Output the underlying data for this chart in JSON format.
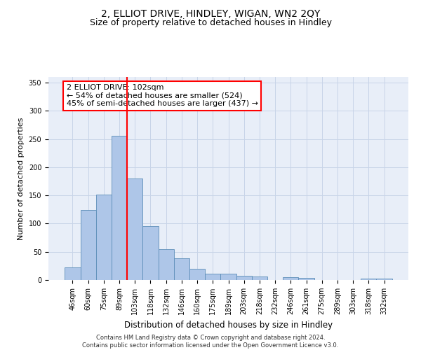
{
  "title": "2, ELLIOT DRIVE, HINDLEY, WIGAN, WN2 2QY",
  "subtitle": "Size of property relative to detached houses in Hindley",
  "xlabel": "Distribution of detached houses by size in Hindley",
  "ylabel": "Number of detached properties",
  "categories": [
    "46sqm",
    "60sqm",
    "75sqm",
    "89sqm",
    "103sqm",
    "118sqm",
    "132sqm",
    "146sqm",
    "160sqm",
    "175sqm",
    "189sqm",
    "203sqm",
    "218sqm",
    "232sqm",
    "246sqm",
    "261sqm",
    "275sqm",
    "289sqm",
    "303sqm",
    "318sqm",
    "332sqm"
  ],
  "values": [
    22,
    124,
    152,
    256,
    180,
    95,
    55,
    38,
    20,
    11,
    11,
    7,
    6,
    0,
    5,
    4,
    0,
    0,
    0,
    2,
    2
  ],
  "bar_color": "#aec6e8",
  "bar_edge_color": "#5b8db8",
  "grid_color": "#c8d4e8",
  "vline_index": 3.5,
  "vline_color": "red",
  "annotation_text": "2 ELLIOT DRIVE: 102sqm\n← 54% of detached houses are smaller (524)\n45% of semi-detached houses are larger (437) →",
  "annotation_box_color": "white",
  "annotation_box_edge_color": "red",
  "ylim": [
    0,
    360
  ],
  "yticks": [
    0,
    50,
    100,
    150,
    200,
    250,
    300,
    350
  ],
  "footer": "Contains HM Land Registry data © Crown copyright and database right 2024.\nContains public sector information licensed under the Open Government Licence v3.0.",
  "bg_color": "#e8eef8",
  "fig_bg_color": "white",
  "title_fontsize": 10,
  "subtitle_fontsize": 9,
  "annotation_fontsize": 8,
  "tick_fontsize": 7,
  "ylabel_fontsize": 8,
  "xlabel_fontsize": 8.5
}
